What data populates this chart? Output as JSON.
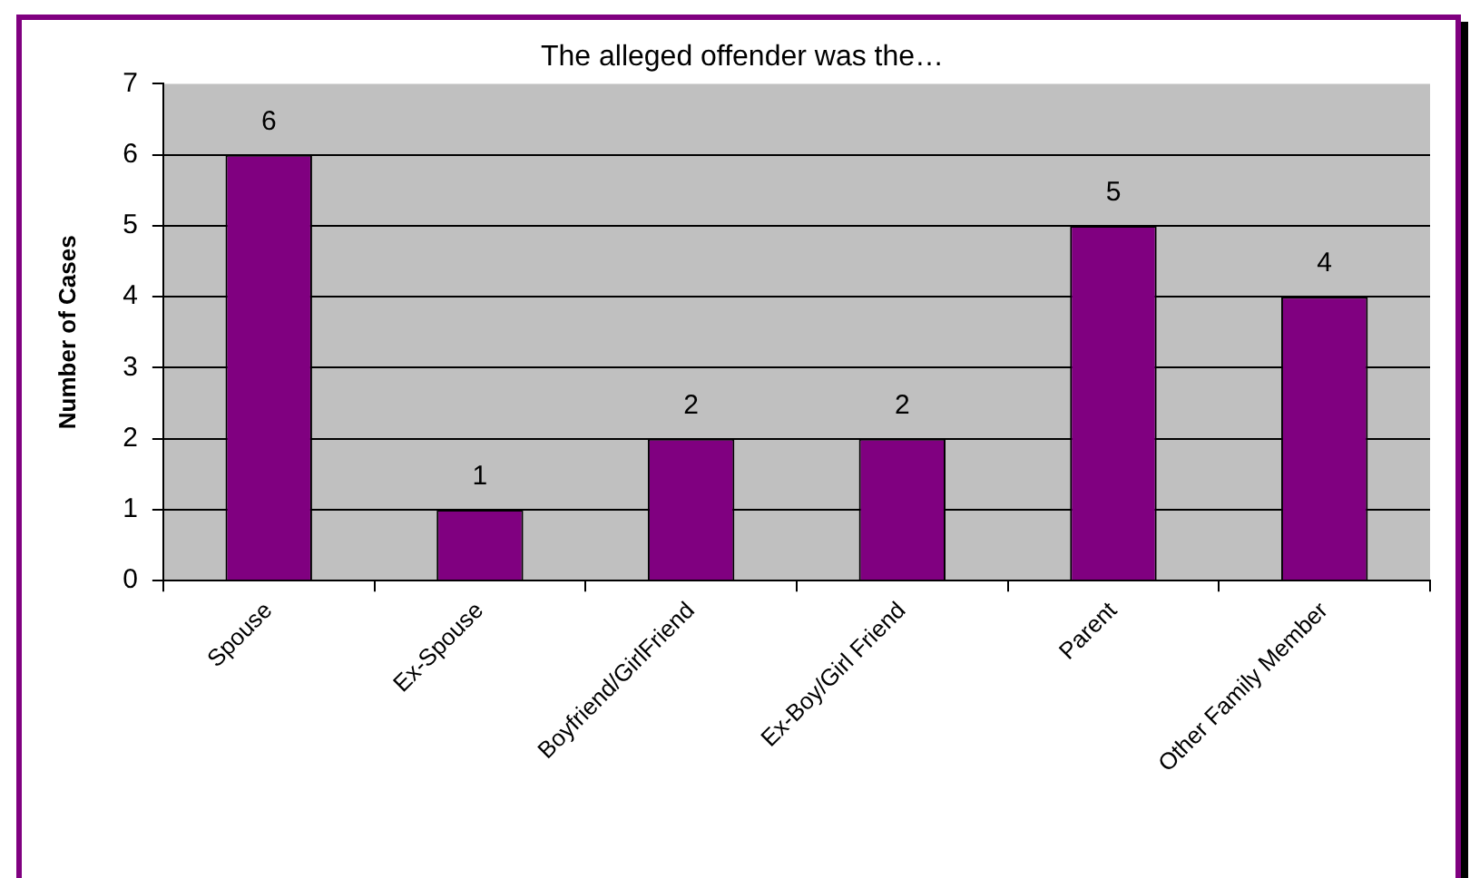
{
  "chart_data": {
    "type": "bar",
    "title": "The alleged offender was the…",
    "ylabel": "Number of Cases",
    "categories": [
      "Spouse",
      "Ex-Spouse",
      "Boyfriend/GirlFriend",
      "Ex-Boy/Girl Friend",
      "Parent",
      "Other Family Member"
    ],
    "values": [
      6,
      1,
      2,
      2,
      5,
      4
    ],
    "color": "#800080",
    "ylim": [
      0,
      7
    ],
    "yticks": [
      0,
      1,
      2,
      3,
      4,
      5,
      6,
      7
    ],
    "grid": "y",
    "legend": false,
    "data_labels": true
  }
}
